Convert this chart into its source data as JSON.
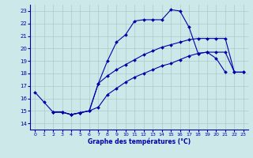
{
  "background_color": "#cce8e8",
  "line_color": "#0000aa",
  "grid_color": "#aacccc",
  "xlabel": "Graphe des températures (°C)",
  "xlim": [
    -0.5,
    23.5
  ],
  "ylim": [
    13.5,
    23.5
  ],
  "yticks": [
    14,
    15,
    16,
    17,
    18,
    19,
    20,
    21,
    22,
    23
  ],
  "xticks": [
    0,
    1,
    2,
    3,
    4,
    5,
    6,
    7,
    8,
    9,
    10,
    11,
    12,
    13,
    14,
    15,
    16,
    17,
    18,
    19,
    20,
    21,
    22,
    23
  ],
  "curve1_x": [
    0,
    1,
    2,
    3,
    4,
    5,
    6,
    7,
    8,
    9,
    10,
    11,
    12,
    13,
    14,
    15,
    16,
    17,
    18,
    19,
    20,
    21
  ],
  "curve1_y": [
    16.5,
    15.7,
    14.9,
    14.9,
    14.7,
    14.85,
    15.0,
    17.2,
    19.0,
    20.5,
    21.1,
    22.2,
    22.3,
    22.3,
    22.3,
    23.1,
    23.0,
    21.7,
    19.6,
    19.7,
    19.2,
    18.1
  ],
  "curve2_x": [
    2,
    3,
    4,
    5,
    6,
    7,
    8,
    9,
    10,
    11,
    12,
    13,
    14,
    15,
    16,
    17,
    18,
    19,
    20,
    21,
    22,
    23
  ],
  "curve2_y": [
    14.9,
    14.9,
    14.7,
    14.85,
    15.0,
    17.2,
    17.8,
    18.3,
    18.7,
    19.1,
    19.5,
    19.8,
    20.1,
    20.3,
    20.5,
    20.7,
    20.8,
    20.8,
    20.8,
    20.8,
    18.1,
    18.1
  ],
  "curve3_x": [
    2,
    3,
    4,
    5,
    6,
    7,
    8,
    9,
    10,
    11,
    12,
    13,
    14,
    15,
    16,
    17,
    18,
    19,
    20,
    21,
    22,
    23
  ],
  "curve3_y": [
    14.9,
    14.9,
    14.7,
    14.85,
    15.0,
    15.3,
    16.3,
    16.8,
    17.3,
    17.7,
    18.0,
    18.3,
    18.6,
    18.8,
    19.1,
    19.4,
    19.6,
    19.7,
    19.7,
    19.7,
    18.1,
    18.1
  ]
}
